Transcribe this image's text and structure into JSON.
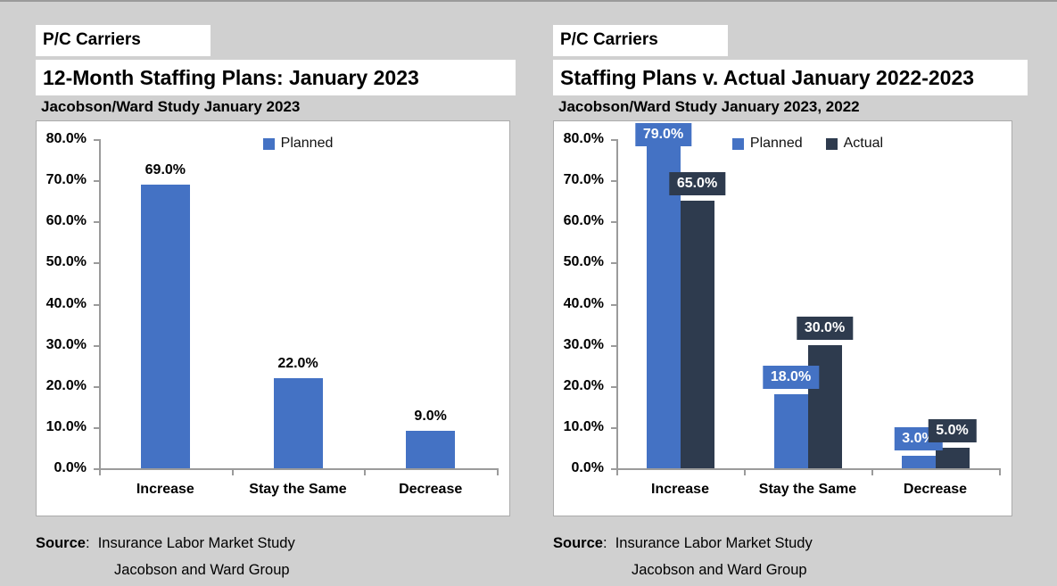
{
  "page": {
    "background": "#d0d0d0",
    "top_edge_color": "#9a9a9a"
  },
  "panels": [
    {
      "tag": "P/C Carriers",
      "title": "12-Month Staffing Plans: January 2023",
      "subtitle": "Jacobson/Ward Study January 2023",
      "source": {
        "label": "Source",
        "text": ":  Insurance Labor Market Study",
        "line2": "Jacobson and Ward Group"
      }
    },
    {
      "tag": "P/C Carriers",
      "title": "Staffing Plans v. Actual January 2022-2023",
      "subtitle": "Jacobson/Ward Study January 2023, 2022",
      "source": {
        "label": "Source",
        "text": ":  Insurance Labor Market Study",
        "line2": "Jacobson and Ward Group"
      }
    }
  ],
  "chart_data": [
    {
      "type": "bar",
      "title": "12-Month Staffing Plans: January 2023",
      "subtitle": "Jacobson/Ward Study January 2023",
      "categories": [
        "Increase",
        "Stay the Same",
        "Decrease"
      ],
      "series": [
        {
          "name": "Planned",
          "color": "#4472C4",
          "values": [
            69.0,
            22.0,
            9.0
          ],
          "value_labels": [
            "69.0%",
            "22.0%",
            "9.0%"
          ]
        }
      ],
      "xlabel": "",
      "ylabel": "",
      "ylim": [
        0,
        80
      ],
      "y_ticks": [
        "0.0%",
        "10.0%",
        "20.0%",
        "30.0%",
        "40.0%",
        "50.0%",
        "60.0%",
        "70.0%",
        "80.0%"
      ],
      "grid": false,
      "legend_position": "top-center",
      "value_label_style": "plain"
    },
    {
      "type": "bar",
      "title": "Staffing Plans v. Actual January 2022-2023",
      "subtitle": "Jacobson/Ward Study January 2023, 2022",
      "categories": [
        "Increase",
        "Stay the Same",
        "Decrease"
      ],
      "series": [
        {
          "name": "Planned",
          "color": "#4472C4",
          "values": [
            79.0,
            18.0,
            3.0
          ],
          "value_labels": [
            "79.0%",
            "18.0%",
            "3.0%"
          ]
        },
        {
          "name": "Actual",
          "color": "#2E3B4E",
          "values": [
            65.0,
            30.0,
            5.0
          ],
          "value_labels": [
            "65.0%",
            "30.0%",
            "5.0%"
          ]
        }
      ],
      "xlabel": "",
      "ylabel": "",
      "ylim": [
        0,
        80
      ],
      "y_ticks": [
        "0.0%",
        "10.0%",
        "20.0%",
        "30.0%",
        "40.0%",
        "50.0%",
        "60.0%",
        "70.0%",
        "80.0%"
      ],
      "grid": false,
      "legend_position": "top-center",
      "value_label_style": "boxed"
    }
  ]
}
